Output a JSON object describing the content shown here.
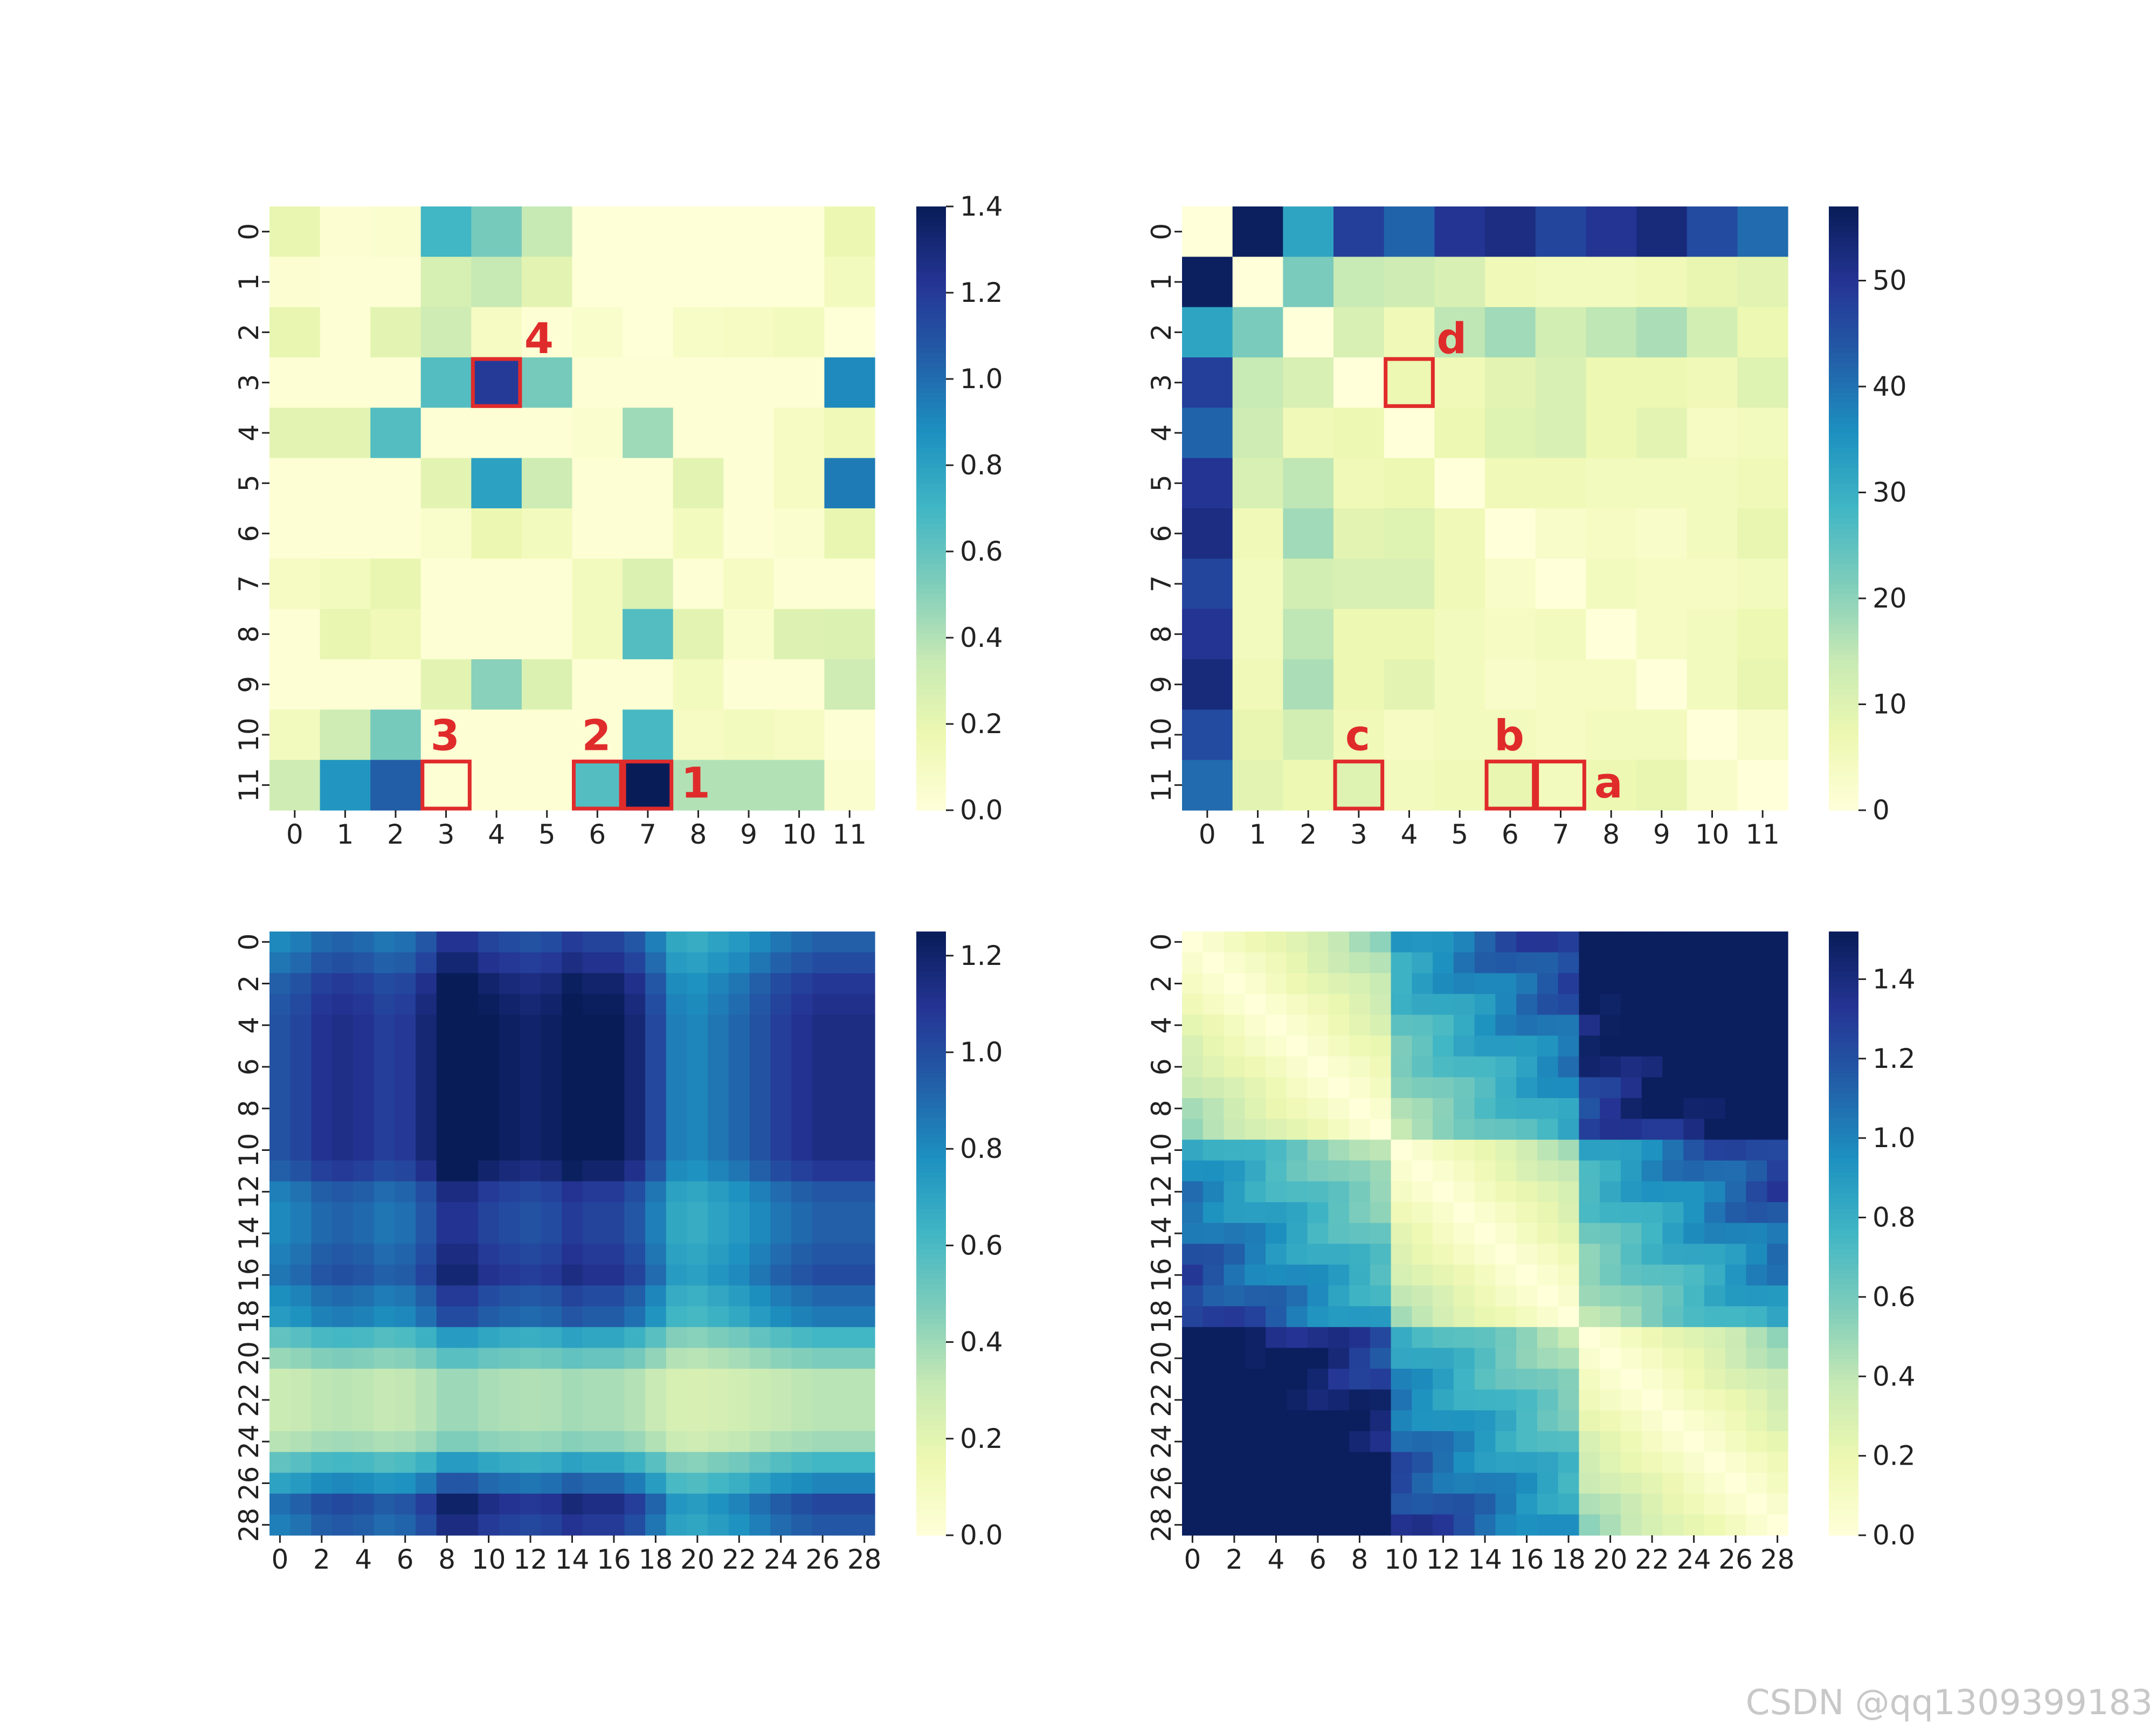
{
  "watermark": "CSDN @qq1309399183",
  "colors": {
    "scale": [
      "#ffffd9",
      "#edf8b1",
      "#c7e9b4",
      "#7fcdbb",
      "#41b6c4",
      "#1d91c0",
      "#225ea8",
      "#253494",
      "#081d58"
    ],
    "highlight": "#e02b2b",
    "text": "#222222"
  },
  "chart_data": [
    {
      "type": "heatmap",
      "position_label": "top-left",
      "rows": [
        "0",
        "1",
        "2",
        "3",
        "4",
        "5",
        "6",
        "7",
        "8",
        "9",
        "10",
        "11"
      ],
      "cols": [
        "0",
        "1",
        "2",
        "3",
        "4",
        "5",
        "6",
        "7",
        "8",
        "9",
        "10",
        "11"
      ],
      "values": [
        [
          0.2,
          0.03,
          0.05,
          0.7,
          0.55,
          0.35,
          0.01,
          0.01,
          0.01,
          0.01,
          0.01,
          0.18
        ],
        [
          0.03,
          0.02,
          0.02,
          0.28,
          0.35,
          0.22,
          0.01,
          0.01,
          0.01,
          0.01,
          0.01,
          0.12
        ],
        [
          0.2,
          0.02,
          0.22,
          0.32,
          0.1,
          0.02,
          0.06,
          0.01,
          0.08,
          0.1,
          0.12,
          0.01
        ],
        [
          0.02,
          0.02,
          0.02,
          0.65,
          1.2,
          0.55,
          0.02,
          0.02,
          0.02,
          0.02,
          0.02,
          0.9
        ],
        [
          0.22,
          0.22,
          0.65,
          0.02,
          0.02,
          0.02,
          0.05,
          0.45,
          0.02,
          0.02,
          0.1,
          0.15
        ],
        [
          0.02,
          0.02,
          0.02,
          0.22,
          0.8,
          0.32,
          0.02,
          0.02,
          0.22,
          0.02,
          0.1,
          0.95
        ],
        [
          0.02,
          0.02,
          0.02,
          0.06,
          0.18,
          0.12,
          0.02,
          0.02,
          0.12,
          0.02,
          0.05,
          0.2
        ],
        [
          0.1,
          0.12,
          0.2,
          0.02,
          0.02,
          0.02,
          0.12,
          0.26,
          0.02,
          0.1,
          0.02,
          0.02
        ],
        [
          0.02,
          0.2,
          0.15,
          0.02,
          0.02,
          0.02,
          0.12,
          0.65,
          0.22,
          0.06,
          0.25,
          0.26
        ],
        [
          0.02,
          0.02,
          0.02,
          0.22,
          0.5,
          0.26,
          0.02,
          0.02,
          0.12,
          0.02,
          0.02,
          0.32
        ],
        [
          0.12,
          0.32,
          0.55,
          0.02,
          0.02,
          0.02,
          0.02,
          0.68,
          0.1,
          0.12,
          0.1,
          0.02
        ],
        [
          0.32,
          0.85,
          1.05,
          0.02,
          0.02,
          0.02,
          0.65,
          1.4,
          0.4,
          0.4,
          0.4,
          0.05
        ]
      ],
      "vmin": 0,
      "vmax": 1.4,
      "colorbar_ticks": [
        "0.0",
        "0.2",
        "0.4",
        "0.6",
        "0.8",
        "1.0",
        "1.2",
        "1.4"
      ],
      "highlights": [
        {
          "row": 3,
          "col": 4,
          "label": "4",
          "label_side": "top-right"
        },
        {
          "row": 11,
          "col": 3,
          "label": "3",
          "label_side": "top-left"
        },
        {
          "row": 11,
          "col": 6,
          "label": "2",
          "label_side": "top-left"
        },
        {
          "row": 11,
          "col": 7,
          "label": "1",
          "label_side": "right"
        }
      ]
    },
    {
      "type": "heatmap",
      "position_label": "top-right",
      "rows": [
        "0",
        "1",
        "2",
        "3",
        "4",
        "5",
        "6",
        "7",
        "8",
        "9",
        "10",
        "11"
      ],
      "cols": [
        "0",
        "1",
        "2",
        "3",
        "4",
        "5",
        "6",
        "7",
        "8",
        "9",
        "10",
        "11"
      ],
      "values": [
        [
          0,
          56,
          32,
          48,
          42,
          50,
          52,
          47,
          50,
          53,
          46,
          41
        ],
        [
          56,
          0,
          22,
          14,
          13,
          11,
          6,
          5,
          5,
          6,
          8,
          9
        ],
        [
          32,
          22,
          0,
          11,
          6,
          15,
          18,
          12,
          15,
          17,
          12,
          7
        ],
        [
          48,
          14,
          11,
          0,
          7,
          6,
          9,
          11,
          7,
          7,
          6,
          10
        ],
        [
          42,
          13,
          6,
          7,
          0,
          7,
          10,
          11,
          7,
          9,
          4,
          5
        ],
        [
          50,
          11,
          15,
          6,
          7,
          0,
          6,
          6,
          5,
          5,
          5,
          6
        ],
        [
          52,
          6,
          18,
          9,
          10,
          6,
          0,
          3,
          4,
          3,
          5,
          8
        ],
        [
          47,
          5,
          12,
          11,
          11,
          6,
          3,
          0,
          5,
          4,
          4,
          5
        ],
        [
          50,
          5,
          15,
          7,
          7,
          5,
          4,
          5,
          0,
          4,
          5,
          7
        ],
        [
          53,
          6,
          17,
          7,
          9,
          5,
          3,
          4,
          4,
          0,
          5,
          8
        ],
        [
          46,
          8,
          12,
          6,
          4,
          5,
          5,
          4,
          5,
          5,
          0,
          3
        ],
        [
          41,
          9,
          7,
          10,
          5,
          6,
          8,
          5,
          7,
          8,
          3,
          0
        ]
      ],
      "vmin": 0,
      "vmax": 57,
      "colorbar_ticks": [
        "0",
        "10",
        "20",
        "30",
        "40",
        "50"
      ],
      "colorbar_tick_values": [
        0,
        10,
        20,
        30,
        40,
        50
      ],
      "highlights": [
        {
          "row": 3,
          "col": 4,
          "label": "d",
          "label_side": "top-right"
        },
        {
          "row": 11,
          "col": 3,
          "label": "c",
          "label_side": "top-left"
        },
        {
          "row": 11,
          "col": 6,
          "label": "b",
          "label_side": "top-left"
        },
        {
          "row": 11,
          "col": 7,
          "label": "a",
          "label_side": "right"
        }
      ]
    },
    {
      "type": "heatmap",
      "position_label": "bottom-left",
      "n": 29,
      "tick_labels": [
        "0",
        "2",
        "4",
        "6",
        "8",
        "10",
        "12",
        "14",
        "16",
        "18",
        "20",
        "22",
        "24",
        "26",
        "28"
      ],
      "vmin": 0,
      "vmax": 1.25,
      "colorbar_ticks": [
        "0.0",
        "0.2",
        "0.4",
        "0.6",
        "0.8",
        "1.0",
        "1.2"
      ],
      "colorbar_tick_values": [
        0,
        0.2,
        0.4,
        0.6,
        0.8,
        1.0,
        1.2
      ],
      "row_profile": [
        0.82,
        0.88,
        0.95,
        0.98,
        1.0,
        1.0,
        1.0,
        1.0,
        1.0,
        1.0,
        1.0,
        0.95,
        0.85,
        0.82,
        0.82,
        0.85,
        0.88,
        0.8,
        0.75,
        0.55,
        0.42,
        0.3,
        0.3,
        0.3,
        0.35,
        0.55,
        0.72,
        0.9,
        0.85
      ],
      "col_profile": [
        0.82,
        0.86,
        0.92,
        0.94,
        0.92,
        0.88,
        0.9,
        0.98,
        1.12,
        1.12,
        1.05,
        1.02,
        1.0,
        1.02,
        1.08,
        1.05,
        1.05,
        0.98,
        0.85,
        0.7,
        0.68,
        0.72,
        0.76,
        0.82,
        0.88,
        0.92,
        0.95,
        0.95,
        0.95
      ],
      "peak_value": 1.2
    },
    {
      "type": "heatmap",
      "position_label": "bottom-right",
      "n": 29,
      "tick_labels": [
        "0",
        "2",
        "4",
        "6",
        "8",
        "10",
        "12",
        "14",
        "16",
        "18",
        "20",
        "22",
        "24",
        "26",
        "28"
      ],
      "vmin": 0,
      "vmax": 1.52,
      "colorbar_ticks": [
        "0.0",
        "0.2",
        "0.4",
        "0.6",
        "0.8",
        "1.0",
        "1.2",
        "1.4"
      ],
      "colorbar_tick_values": [
        0,
        0.2,
        0.4,
        0.6,
        0.8,
        1.0,
        1.2,
        1.4
      ],
      "distance_rate": 0.055,
      "cluster_boundaries": [
        10,
        19
      ],
      "max_value": 1.5,
      "symmetric": true
    }
  ]
}
